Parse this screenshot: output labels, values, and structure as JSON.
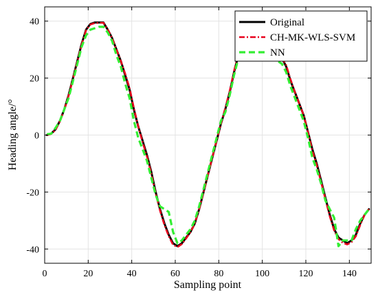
{
  "chart_data": {
    "type": "line",
    "title": "",
    "xlabel": "Sampling point",
    "ylabel": "Heading angle/°",
    "xlim": [
      0,
      150
    ],
    "ylim": [
      -45,
      45
    ],
    "xticks": [
      0,
      20,
      40,
      60,
      80,
      100,
      120,
      140
    ],
    "yticks": [
      -40,
      -20,
      0,
      20,
      40
    ],
    "grid": true,
    "legend_position": "top-right",
    "series": [
      {
        "name": "Original",
        "color": "#000000",
        "style": "solid",
        "x": [
          1,
          3,
          5,
          7,
          9,
          11,
          13,
          15,
          17,
          19,
          21,
          23,
          25,
          27,
          29,
          31,
          33,
          35,
          37,
          39,
          41,
          43,
          45,
          47,
          49,
          51,
          53,
          55,
          57,
          59,
          61,
          63,
          65,
          67,
          69,
          71,
          73,
          75,
          77,
          79,
          81,
          83,
          85,
          87,
          89,
          91,
          93,
          95,
          97,
          99,
          101,
          103,
          105,
          107,
          109,
          111,
          113,
          115,
          117,
          119,
          121,
          123,
          125,
          127,
          129,
          131,
          133,
          135,
          137,
          139,
          141,
          143,
          145,
          147,
          149
        ],
        "y": [
          0,
          0.5,
          2,
          5,
          9,
          14,
          20,
          26,
          32,
          37,
          39,
          39.5,
          39.5,
          39.5,
          37,
          34,
          30,
          26,
          21,
          16,
          9,
          3,
          -2,
          -7,
          -13,
          -20,
          -26,
          -31,
          -35,
          -38,
          -39,
          -38,
          -36,
          -34,
          -31,
          -26,
          -20,
          -14,
          -8,
          -2,
          4,
          9,
          15,
          22,
          28,
          34,
          38,
          39,
          38,
          35,
          32,
          30,
          29,
          28,
          27,
          24,
          19,
          15,
          11,
          7,
          1,
          -5,
          -10,
          -16,
          -22,
          -28,
          -33,
          -36,
          -37,
          -38,
          -37,
          -35,
          -31,
          -28,
          -26
        ]
      },
      {
        "name": "CH-MK-WLS-SVM",
        "color": "#e8001c",
        "style": "dashdot",
        "x": [
          1,
          3,
          5,
          7,
          9,
          11,
          13,
          15,
          17,
          19,
          21,
          23,
          25,
          27,
          29,
          31,
          33,
          35,
          37,
          39,
          41,
          43,
          45,
          47,
          49,
          51,
          53,
          55,
          57,
          59,
          61,
          63,
          65,
          67,
          69,
          71,
          73,
          75,
          77,
          79,
          81,
          83,
          85,
          87,
          89,
          91,
          93,
          95,
          97,
          99,
          101,
          103,
          105,
          107,
          109,
          111,
          113,
          115,
          117,
          119,
          121,
          123,
          125,
          127,
          129,
          131,
          133,
          135,
          137,
          139,
          141,
          143,
          145,
          147,
          149
        ],
        "y": [
          0,
          0.4,
          1.8,
          4.8,
          8.8,
          13.8,
          19.8,
          25.8,
          31.8,
          36.8,
          38.8,
          39.3,
          39.4,
          39.4,
          37,
          34,
          30,
          26,
          21.5,
          16.5,
          9.5,
          3,
          -2.5,
          -7.5,
          -13.5,
          -20.5,
          -26.5,
          -31.5,
          -35.5,
          -38.5,
          -39.3,
          -38.3,
          -36.3,
          -34,
          -31,
          -26,
          -20,
          -14,
          -8,
          -2,
          4,
          9.5,
          15.5,
          22.5,
          28.5,
          34.5,
          38.3,
          39.1,
          38,
          35,
          32,
          30,
          29,
          28,
          27,
          24.5,
          19.5,
          15,
          11,
          7,
          1,
          -5.5,
          -10.5,
          -16.5,
          -22.5,
          -28.5,
          -33.5,
          -36.5,
          -37.8,
          -38.4,
          -37.6,
          -35.5,
          -31.5,
          -28,
          -26
        ]
      },
      {
        "name": "NN",
        "color": "#33ee33",
        "style": "dashed",
        "x": [
          1,
          3,
          5,
          7,
          9,
          11,
          13,
          15,
          17,
          19,
          21,
          23,
          25,
          27,
          29,
          31,
          33,
          35,
          37,
          39,
          41,
          43,
          45,
          47,
          49,
          51,
          53,
          55,
          57,
          59,
          61,
          63,
          65,
          67,
          69,
          71,
          73,
          75,
          77,
          79,
          81,
          83,
          85,
          87,
          89,
          91,
          93,
          95,
          97,
          99,
          101,
          103,
          105,
          107,
          109,
          111,
          113,
          115,
          117,
          119,
          121,
          123,
          125,
          127,
          129,
          131,
          133,
          135,
          137,
          139,
          141,
          143,
          145,
          147,
          149
        ],
        "y": [
          0.3,
          0.5,
          2.5,
          5,
          9,
          13,
          19,
          25,
          31,
          35,
          37,
          37.5,
          38,
          38,
          36,
          33,
          28,
          24,
          18,
          13,
          5,
          -1,
          -5,
          -9,
          -15,
          -21,
          -25,
          -26,
          -27,
          -34,
          -38,
          -37,
          -35,
          -33,
          -30,
          -25,
          -19,
          -13,
          -7,
          -1,
          5,
          8,
          14,
          21,
          27,
          33,
          36,
          37,
          36,
          33,
          30,
          28,
          27,
          26,
          25,
          22,
          17,
          13,
          9,
          5,
          -1,
          -8,
          -12,
          -17,
          -23,
          -26,
          -29,
          -39,
          -37,
          -37,
          -37,
          -33,
          -30,
          -28,
          -26
        ]
      }
    ]
  }
}
